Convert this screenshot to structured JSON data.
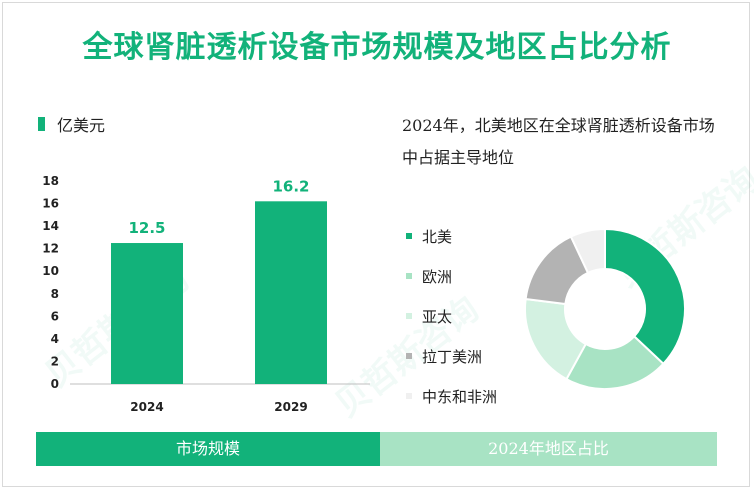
{
  "title": "全球肾脏透析设备市场规模及地区占比分析",
  "watermark": "贝哲斯咨询",
  "chart_data": [
    {
      "type": "bar",
      "unit_label": "亿美元",
      "categories": [
        "2024",
        "2029"
      ],
      "values": [
        12.5,
        16.2
      ],
      "data_labels": [
        "12.5",
        "16.2"
      ],
      "yticks": [
        0,
        2,
        4,
        6,
        8,
        10,
        12,
        14,
        16,
        18
      ],
      "ylim": [
        0,
        18
      ],
      "grid": false,
      "color": "#12b27a",
      "label_color": "#12b27a"
    },
    {
      "type": "pie",
      "subtype": "donut",
      "title": "2024年，北美地区在全球肾脏透析设备市场中占据主导地位",
      "categories": [
        "北美",
        "欧洲",
        "亚太",
        "拉丁美洲",
        "中东和非洲"
      ],
      "values": [
        37,
        21,
        19,
        16,
        7
      ],
      "colors": [
        "#12b27a",
        "#a8e3c4",
        "#d3f1e1",
        "#b3b3b3",
        "#f0f0f0"
      ],
      "legend_position": "left"
    }
  ],
  "footer": {
    "left_label": "市场规模",
    "right_label": "2024年地区占比"
  }
}
